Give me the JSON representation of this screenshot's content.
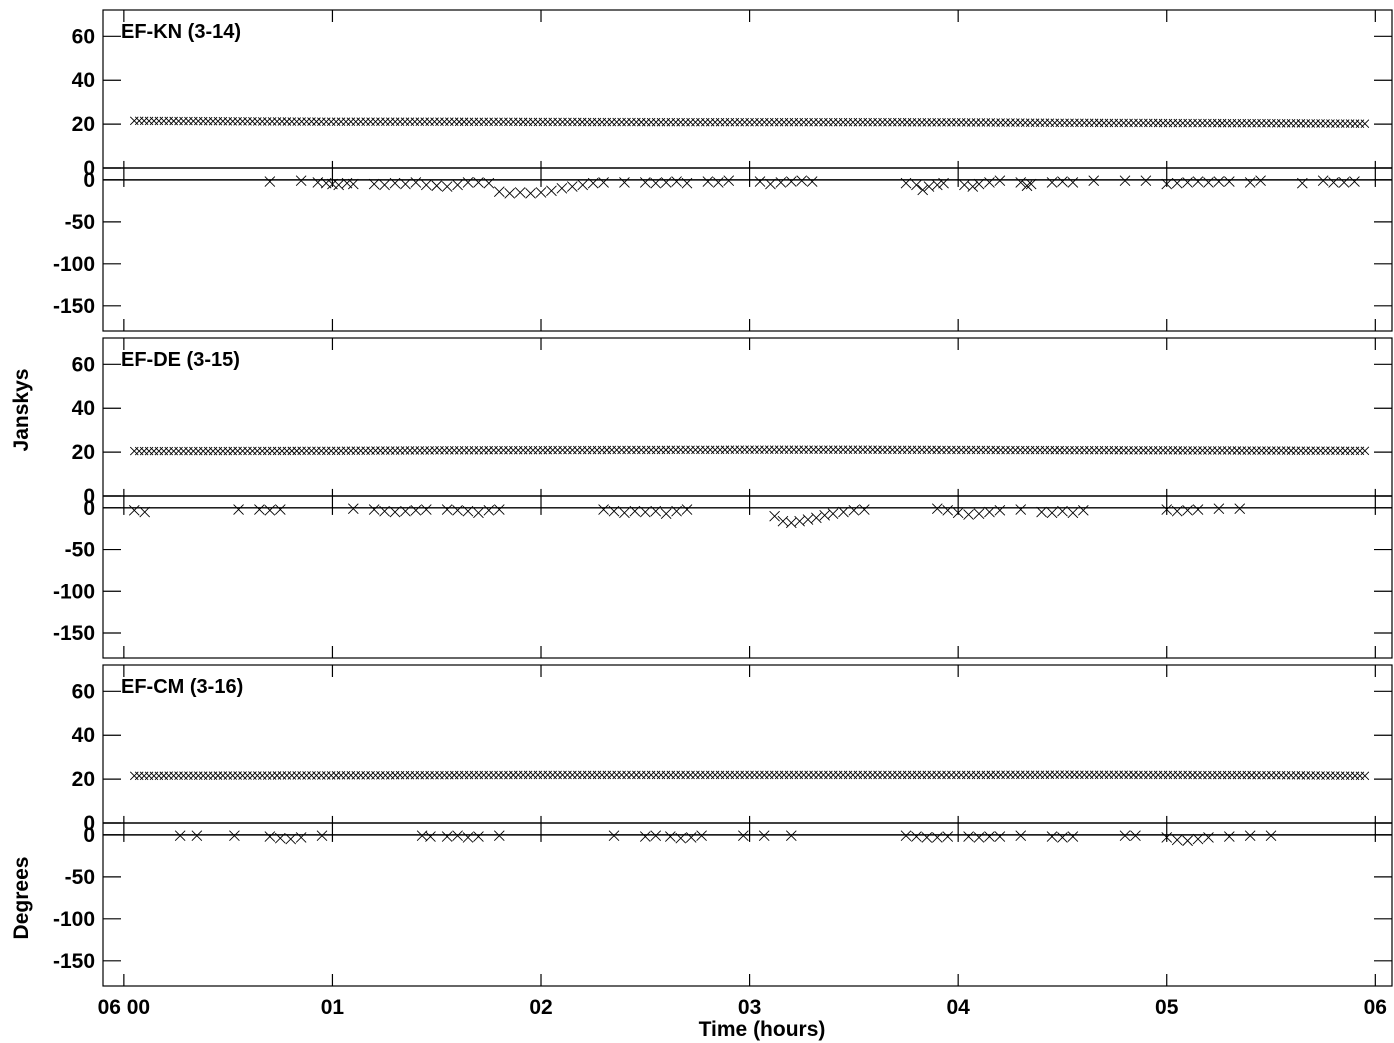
{
  "chart_data": {
    "type": "scatter",
    "xlabel": "Time (hours)",
    "ylabels": [
      "Janskys",
      "Degrees"
    ],
    "x_axis": {
      "range": [
        -0.1,
        6.08
      ],
      "ticks": [
        0,
        1,
        2,
        3,
        4,
        5,
        6
      ],
      "tick_labels": [
        "06 00",
        "01",
        "02",
        "03",
        "04",
        "05",
        "06"
      ]
    },
    "panels": [
      {
        "name": "EF-KN (3-14)",
        "amplitude_axis": {
          "range": [
            0,
            72
          ],
          "ticks": [
            0,
            20,
            40,
            60
          ],
          "tick_labels": [
            "0",
            "20",
            "40",
            "60"
          ]
        },
        "phase_axis": {
          "range": [
            -180,
            7
          ],
          "ticks": [
            0,
            -50,
            -100,
            -150
          ],
          "tick_labels": [
            "0",
            "-50",
            "-100",
            "-150"
          ]
        },
        "amplitude": {
          "x": [
            0.05,
            0.5,
            1.0,
            1.5,
            2.0,
            2.5,
            3.0,
            3.5,
            4.0,
            4.5,
            5.0,
            5.5,
            5.95
          ],
          "y": [
            21.5,
            21.3,
            21.1,
            21.1,
            21.0,
            20.9,
            20.9,
            20.9,
            20.8,
            20.6,
            20.5,
            20.4,
            20.2
          ]
        },
        "phase": {
          "x": [
            0.7,
            0.85,
            0.93,
            0.97,
            1.0,
            1.03,
            1.07,
            1.1,
            1.2,
            1.25,
            1.3,
            1.35,
            1.4,
            1.45,
            1.5,
            1.55,
            1.6,
            1.65,
            1.7,
            1.75,
            1.8,
            1.85,
            1.9,
            1.95,
            2.0,
            2.05,
            2.1,
            2.15,
            2.2,
            2.25,
            2.3,
            2.4,
            2.5,
            2.55,
            2.6,
            2.65,
            2.7,
            2.8,
            2.85,
            2.9,
            3.05,
            3.1,
            3.15,
            3.2,
            3.25,
            3.3,
            3.75,
            3.8,
            3.83,
            3.86,
            3.9,
            3.93,
            4.03,
            4.07,
            4.1,
            4.15,
            4.2,
            4.3,
            4.33,
            4.35,
            4.45,
            4.5,
            4.55,
            4.65,
            4.8,
            4.9,
            5.0,
            5.05,
            5.1,
            5.15,
            5.2,
            5.25,
            5.3,
            5.4,
            5.45,
            5.65,
            5.75,
            5.8,
            5.85,
            5.9
          ],
          "y": [
            -2,
            -1,
            -3,
            -4,
            -5,
            -6,
            -4,
            -5,
            -5,
            -6,
            -4,
            -5,
            -3,
            -6,
            -7,
            -8,
            -6,
            -3,
            -3,
            -4,
            -14,
            -16,
            -15,
            -16,
            -15,
            -13,
            -10,
            -8,
            -6,
            -4,
            -3,
            -3,
            -3,
            -4,
            -3,
            -2,
            -4,
            -2,
            -3,
            -1,
            -2,
            -5,
            -3,
            -2,
            -1,
            -2,
            -4,
            -6,
            -12,
            -8,
            -6,
            -4,
            -6,
            -8,
            -5,
            -3,
            -1,
            -3,
            -7,
            -5,
            -3,
            -2,
            -3,
            -1,
            -1,
            -1,
            -5,
            -4,
            -3,
            -2,
            -3,
            -2,
            -2,
            -3,
            -1,
            -4,
            -1,
            -3,
            -3,
            -2
          ]
        }
      },
      {
        "name": "EF-DE (3-15)",
        "amplitude_axis": {
          "range": [
            0,
            72
          ],
          "ticks": [
            0,
            20,
            40,
            60
          ],
          "tick_labels": [
            "0",
            "20",
            "40",
            "60"
          ]
        },
        "phase_axis": {
          "range": [
            -180,
            7
          ],
          "ticks": [
            0,
            -50,
            -100,
            -150
          ],
          "tick_labels": [
            "0",
            "-50",
            "-100",
            "-150"
          ]
        },
        "amplitude": {
          "x": [
            0.05,
            0.5,
            1.0,
            1.5,
            2.0,
            2.5,
            3.0,
            3.5,
            4.0,
            4.5,
            5.0,
            5.5,
            5.95
          ],
          "y": [
            20.5,
            20.5,
            20.6,
            20.8,
            20.9,
            21.0,
            21.1,
            21.1,
            21.0,
            20.9,
            20.8,
            20.7,
            20.6
          ]
        },
        "phase": {
          "x": [
            0.05,
            0.1,
            0.55,
            0.65,
            0.7,
            0.75,
            1.1,
            1.2,
            1.25,
            1.3,
            1.35,
            1.4,
            1.45,
            1.55,
            1.6,
            1.65,
            1.7,
            1.75,
            1.8,
            2.3,
            2.35,
            2.4,
            2.45,
            2.5,
            2.55,
            2.6,
            2.65,
            2.7,
            3.12,
            3.16,
            3.2,
            3.24,
            3.28,
            3.32,
            3.36,
            3.4,
            3.45,
            3.5,
            3.55,
            3.9,
            3.95,
            4.0,
            4.05,
            4.1,
            4.15,
            4.2,
            4.3,
            4.4,
            4.45,
            4.5,
            4.55,
            4.6,
            5.0,
            5.05,
            5.1,
            5.15,
            5.25,
            5.35
          ],
          "y": [
            -3,
            -5,
            -2,
            -2,
            -3,
            -2,
            -1,
            -2,
            -4,
            -5,
            -4,
            -3,
            -2,
            -2,
            -3,
            -4,
            -6,
            -3,
            -2,
            -2,
            -4,
            -6,
            -4,
            -5,
            -4,
            -7,
            -4,
            -2,
            -10,
            -16,
            -18,
            -16,
            -14,
            -12,
            -9,
            -7,
            -5,
            -3,
            -2,
            -1,
            -3,
            -6,
            -8,
            -7,
            -5,
            -3,
            -2,
            -5,
            -6,
            -4,
            -6,
            -3,
            -2,
            -4,
            -3,
            -2,
            -1,
            -1
          ]
        }
      },
      {
        "name": "EF-CM (3-16)",
        "amplitude_axis": {
          "range": [
            0,
            72
          ],
          "ticks": [
            0,
            20,
            40,
            60
          ],
          "tick_labels": [
            "0",
            "20",
            "40",
            "60"
          ]
        },
        "phase_axis": {
          "range": [
            -180,
            7
          ],
          "ticks": [
            0,
            -50,
            -100,
            -150
          ],
          "tick_labels": [
            "0",
            "-50",
            "-100",
            "-150"
          ]
        },
        "amplitude": {
          "x": [
            0.05,
            0.5,
            1.0,
            1.5,
            2.0,
            2.5,
            3.0,
            3.5,
            4.0,
            4.5,
            5.0,
            5.5,
            5.95
          ],
          "y": [
            21.5,
            21.6,
            21.7,
            21.8,
            21.9,
            21.9,
            21.9,
            21.9,
            21.9,
            22.0,
            21.9,
            21.8,
            21.5
          ]
        },
        "phase": {
          "x": [
            0.27,
            0.35,
            0.53,
            0.7,
            0.75,
            0.8,
            0.85,
            0.95,
            1.43,
            1.47,
            1.55,
            1.6,
            1.65,
            1.7,
            1.8,
            2.35,
            2.5,
            2.55,
            2.62,
            2.67,
            2.72,
            2.77,
            2.97,
            3.07,
            3.2,
            3.75,
            3.8,
            3.85,
            3.9,
            3.95,
            4.05,
            4.1,
            4.15,
            4.2,
            4.3,
            4.45,
            4.5,
            4.55,
            4.8,
            4.85,
            5.0,
            5.05,
            5.1,
            5.15,
            5.2,
            5.3,
            5.4,
            5.5
          ],
          "y": [
            -1,
            -1,
            -1,
            -2,
            -4,
            -5,
            -3,
            -1,
            -1,
            -2,
            -2,
            -1,
            -3,
            -2,
            -1,
            -1,
            -2,
            -1,
            -2,
            -4,
            -3,
            -1,
            -1,
            -1,
            -1,
            -1,
            -2,
            -3,
            -3,
            -2,
            -2,
            -3,
            -2,
            -2,
            -1,
            -2,
            -3,
            -2,
            -1,
            -1,
            -3,
            -6,
            -7,
            -5,
            -3,
            -2,
            -1,
            -1
          ]
        }
      }
    ]
  }
}
